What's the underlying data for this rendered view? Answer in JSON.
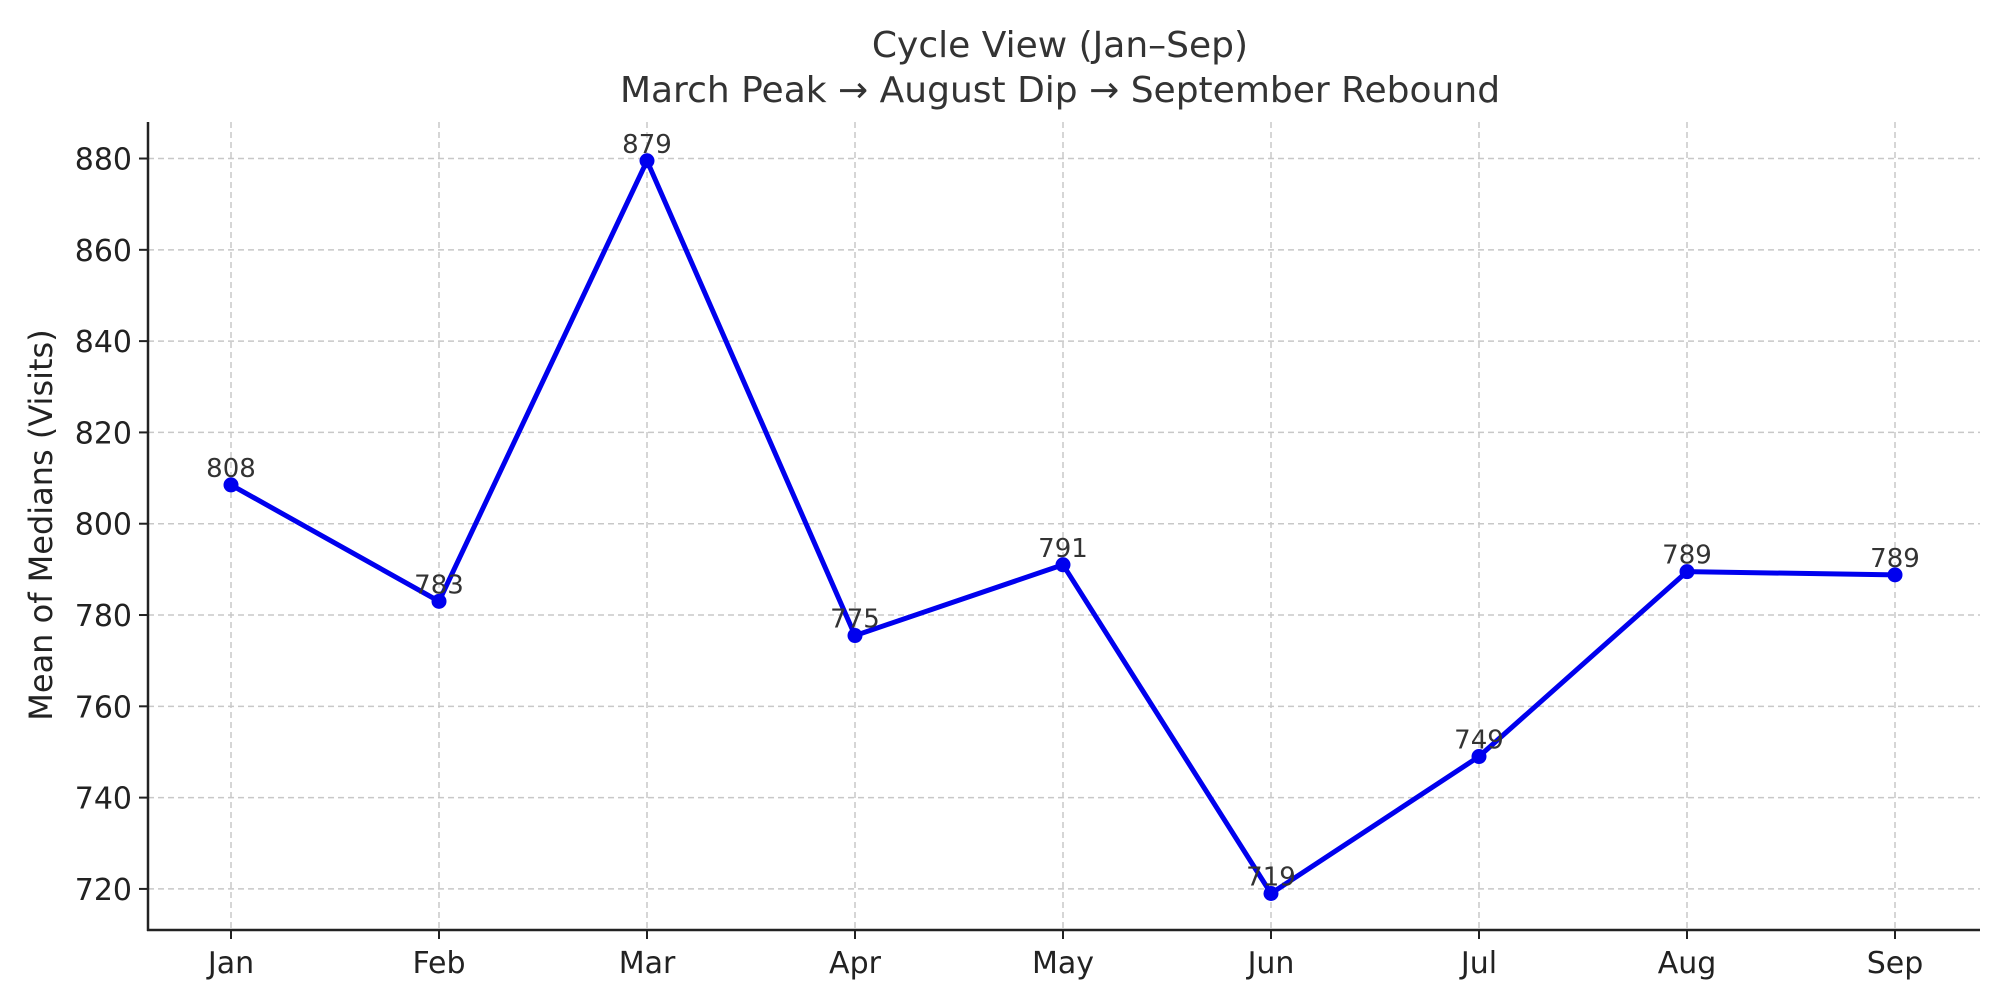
{
  "chart_data": {
    "type": "line",
    "title": "Cycle View (Jan–Sep)",
    "subtitle": "March Peak → August Dip → September Rebound",
    "xlabel": "",
    "ylabel": "Mean of Medians (Visits)",
    "categories": [
      "Jan",
      "Feb",
      "Mar",
      "Apr",
      "May",
      "Jun",
      "Jul",
      "Aug",
      "Sep"
    ],
    "series": [
      {
        "values": [
          808.5,
          783,
          879.5,
          775.5,
          791,
          719,
          749,
          789.5,
          788.8
        ],
        "labels": [
          "808",
          "783",
          "879",
          "775",
          "791",
          "719",
          "749",
          "789",
          "789"
        ]
      }
    ],
    "ylim": [
      711,
      888
    ],
    "yticks": [
      720,
      740,
      760,
      780,
      800,
      820,
      840,
      860,
      880
    ],
    "grid": true,
    "colors": {
      "line": "#0000ee",
      "grid": "#c8c8c8",
      "axis": "#222222"
    }
  }
}
